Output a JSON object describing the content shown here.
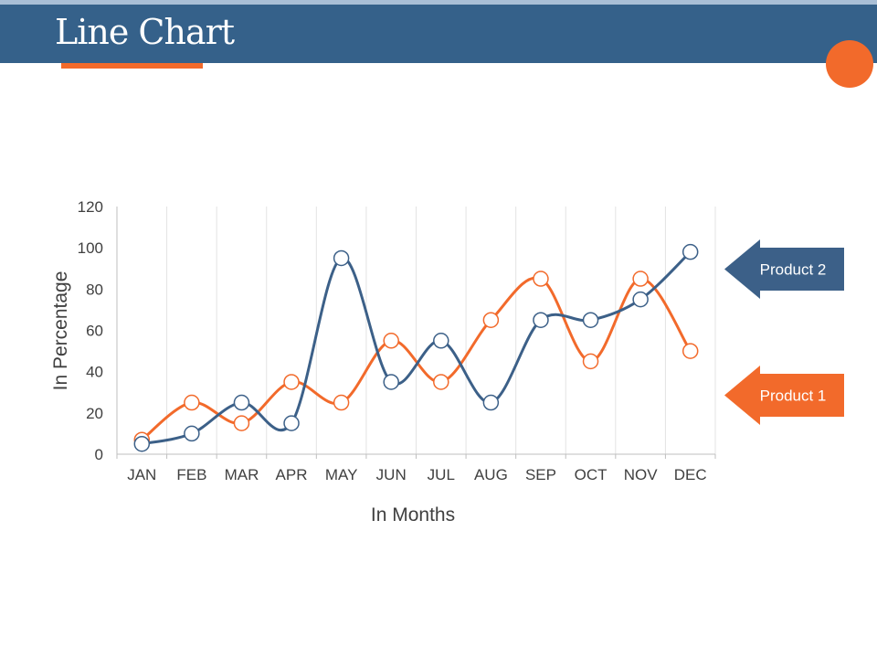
{
  "slide": {
    "title": "Line Chart"
  },
  "colors": {
    "header": "#35618a",
    "accent": "#f26a2b",
    "product1": "#f26a2b",
    "product2": "#3c6088"
  },
  "chart_data": {
    "type": "line",
    "title": "Line Chart",
    "xlabel": "In Months",
    "ylabel": "In Percentage",
    "categories": [
      "JAN",
      "FEB",
      "MAR",
      "APR",
      "MAY",
      "JUN",
      "JUL",
      "AUG",
      "SEP",
      "OCT",
      "NOV",
      "DEC"
    ],
    "ylim": [
      0,
      120
    ],
    "yticks": [
      0,
      20,
      40,
      60,
      80,
      100,
      120
    ],
    "grid": "vertical",
    "series": [
      {
        "name": "Product 1",
        "color": "#f26a2b",
        "values": [
          7,
          25,
          15,
          35,
          25,
          55,
          35,
          65,
          85,
          45,
          85,
          50
        ]
      },
      {
        "name": "Product 2",
        "color": "#3c6088",
        "values": [
          5,
          10,
          25,
          15,
          95,
          35,
          55,
          25,
          65,
          65,
          75,
          98
        ]
      }
    ],
    "legend": [
      {
        "label": "Product 2",
        "series": "Product 2",
        "placement": "right-upper"
      },
      {
        "label": "Product 1",
        "series": "Product 1",
        "placement": "right-lower"
      }
    ]
  }
}
